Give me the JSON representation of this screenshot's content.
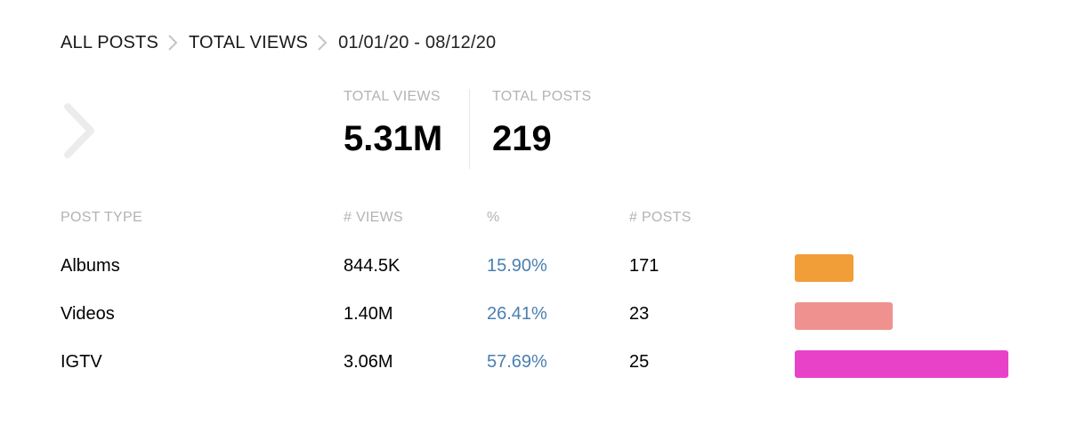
{
  "breadcrumb": {
    "items": [
      "ALL POSTS",
      "TOTAL VIEWS"
    ],
    "date_range": "01/01/20 - 08/12/20"
  },
  "stats": {
    "total_views_label": "TOTAL VIEWS",
    "total_views_value": "5.31M",
    "total_posts_label": "TOTAL POSTS",
    "total_posts_value": "219"
  },
  "table": {
    "headers": {
      "post_type": "POST TYPE",
      "views": "# VIEWS",
      "percent": "%",
      "posts": "# POSTS"
    },
    "rows": [
      {
        "type": "Albums",
        "views": "844.5K",
        "percent": "15.90%",
        "posts": "171",
        "share": 15.9,
        "color": "#f19d38"
      },
      {
        "type": "Videos",
        "views": "1.40M",
        "percent": "26.41%",
        "posts": "23",
        "share": 26.41,
        "color": "#ef918e"
      },
      {
        "type": "IGTV",
        "views": "3.06M",
        "percent": "57.69%",
        "posts": "25",
        "share": 57.69,
        "color": "#e842c9"
      }
    ]
  },
  "icons": {
    "breadcrumb_separator": "chevron-right-icon",
    "back": "chevron-right-icon"
  },
  "colors": {
    "percent_text": "#4a7fb0",
    "muted_label": "#b3b3b3"
  }
}
